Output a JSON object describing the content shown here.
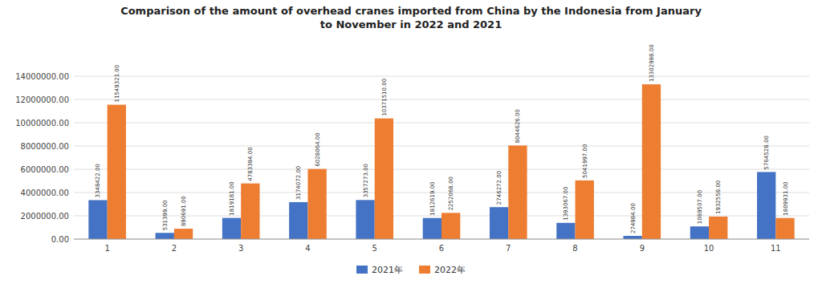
{
  "chart_data": {
    "type": "bar",
    "title": "Comparison of the amount of overhead cranes imported from China by the Indonesia from January\nto November in 2022 and 2021",
    "categories": [
      "1",
      "2",
      "3",
      "4",
      "5",
      "6",
      "7",
      "8",
      "9",
      "10",
      "11"
    ],
    "series": [
      {
        "name": "2021年",
        "color": "#4472c4",
        "values": [
          3348422,
          531399,
          1819181,
          3174072,
          3357273,
          1812619,
          2746272,
          1393067,
          274984,
          1089507,
          5764528
        ],
        "value_labels": [
          "3348422.00",
          "531399.00",
          "1819181.00",
          "3174072.00",
          "3357273.00",
          "1812619.00",
          "2746272.00",
          "1393067.00",
          "274984.00",
          "1089507.00",
          "5764528.00"
        ]
      },
      {
        "name": "2022年",
        "color": "#ed7d31",
        "values": [
          11549321,
          890691,
          4783394,
          6028064,
          10371510,
          2252068,
          8044626,
          5041997,
          13302998,
          1932558,
          1809931
        ],
        "value_labels": [
          "11549321.00",
          "890691.00",
          "4783394.00",
          "6028064.00",
          "10371510.00",
          "2252068.00",
          "8044626.00",
          "5041997.00",
          "13302998.00",
          "1932558.00",
          "1809931.00"
        ]
      }
    ],
    "ylim": [
      0,
      14000000
    ],
    "yticks": [
      {
        "value": 0,
        "label": "0.00"
      },
      {
        "value": 2000000,
        "label": "2000000.00"
      },
      {
        "value": 4000000,
        "label": "4000000.00"
      },
      {
        "value": 6000000,
        "label": "6000000.00"
      },
      {
        "value": 8000000,
        "label": "8000000.00"
      },
      {
        "value": 10000000,
        "label": "10000000.00"
      },
      {
        "value": 12000000,
        "label": "12000000.00"
      },
      {
        "value": 14000000,
        "label": "14000000.00"
      }
    ],
    "grid": true,
    "legend": "bottom",
    "data_labels": true
  }
}
